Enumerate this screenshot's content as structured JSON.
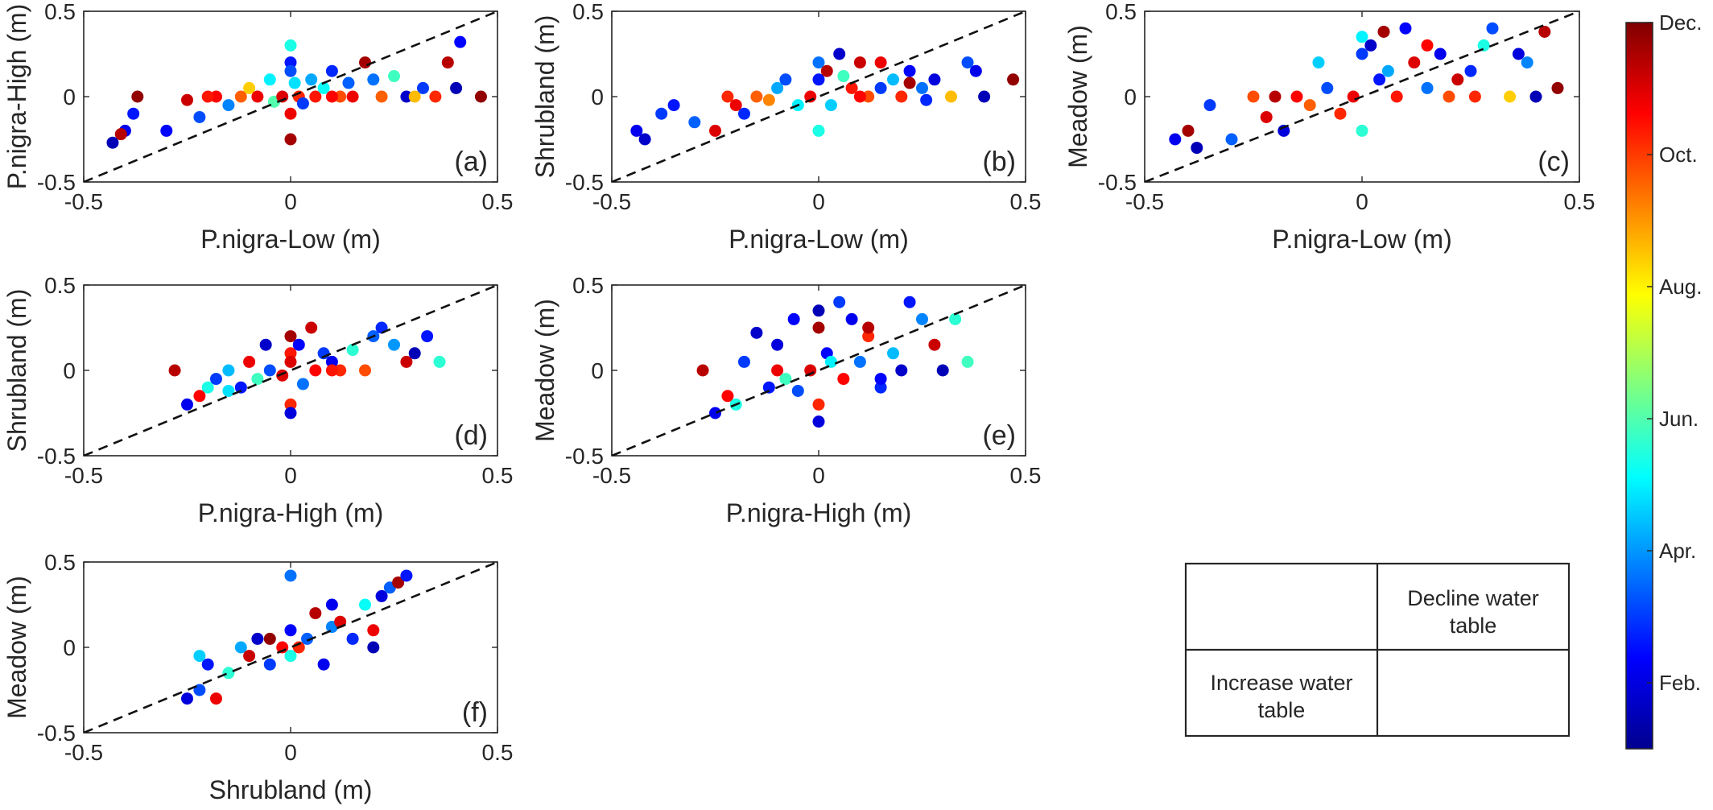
{
  "chart_data": [
    {
      "panel": "(a)",
      "type": "scatter",
      "xlabel": "P.nigra-Low (m)",
      "ylabel": "P.nigra-High (m)",
      "xlim": [
        -0.5,
        0.5
      ],
      "ylim": [
        -0.5,
        0.5
      ],
      "xticks": [
        "-0.5",
        "0",
        "0.5"
      ],
      "yticks": [
        "-0.5",
        "0",
        "0.5"
      ],
      "reference_line": "1:1 dashed",
      "points": [
        [
          -0.43,
          -0.27,
          1.6
        ],
        [
          -0.4,
          -0.2,
          2.2
        ],
        [
          -0.38,
          -0.1,
          2.6
        ],
        [
          -0.41,
          -0.22,
          11.4
        ],
        [
          -0.37,
          0.0,
          11.8
        ],
        [
          -0.3,
          -0.2,
          2.4
        ],
        [
          -0.25,
          -0.02,
          11.2
        ],
        [
          -0.22,
          -0.12,
          3.2
        ],
        [
          -0.18,
          0.0,
          10.6
        ],
        [
          -0.15,
          -0.05,
          3.8
        ],
        [
          -0.12,
          0.0,
          9.6
        ],
        [
          -0.1,
          0.05,
          8.4
        ],
        [
          -0.08,
          0.0,
          10.8
        ],
        [
          -0.05,
          0.1,
          5.0
        ],
        [
          -0.04,
          -0.03,
          6.0
        ],
        [
          -0.02,
          0.0,
          11.0
        ],
        [
          0.0,
          0.3,
          5.4
        ],
        [
          0.0,
          0.2,
          2.6
        ],
        [
          0.0,
          0.15,
          3.2
        ],
        [
          0.0,
          -0.1,
          10.8
        ],
        [
          0.0,
          -0.25,
          11.6
        ],
        [
          0.01,
          0.08,
          4.8
        ],
        [
          0.02,
          0.0,
          10.2
        ],
        [
          0.03,
          -0.04,
          3.0
        ],
        [
          0.05,
          0.1,
          4.2
        ],
        [
          0.06,
          0.0,
          10.4
        ],
        [
          0.08,
          0.05,
          5.2
        ],
        [
          0.1,
          0.15,
          2.8
        ],
        [
          0.12,
          0.0,
          9.8
        ],
        [
          0.14,
          0.08,
          3.4
        ],
        [
          0.15,
          0.0,
          10.8
        ],
        [
          0.18,
          0.2,
          11.6
        ],
        [
          0.2,
          0.1,
          3.6
        ],
        [
          0.22,
          0.0,
          9.6
        ],
        [
          0.25,
          0.12,
          5.8
        ],
        [
          0.28,
          0.0,
          1.8
        ],
        [
          0.32,
          0.05,
          3.0
        ],
        [
          0.35,
          0.0,
          10.2
        ],
        [
          0.38,
          0.2,
          11.4
        ],
        [
          0.4,
          0.05,
          1.6
        ],
        [
          0.41,
          0.32,
          2.4
        ],
        [
          0.46,
          0.0,
          11.8
        ],
        [
          0.3,
          0.0,
          8.6
        ],
        [
          0.1,
          0.0,
          10.6
        ],
        [
          -0.2,
          0.0,
          10.4
        ]
      ]
    },
    {
      "panel": "(b)",
      "type": "scatter",
      "xlabel": "P.nigra-Low (m)",
      "ylabel": "Shrubland (m)",
      "xlim": [
        -0.5,
        0.5
      ],
      "ylim": [
        -0.5,
        0.5
      ],
      "xticks": [
        "-0.5",
        "0",
        "0.5"
      ],
      "yticks": [
        "-0.5",
        "0",
        "0.5"
      ],
      "reference_line": "1:1 dashed",
      "points": [
        [
          -0.44,
          -0.2,
          2.2
        ],
        [
          -0.42,
          -0.25,
          1.8
        ],
        [
          -0.38,
          -0.1,
          3.0
        ],
        [
          -0.35,
          -0.05,
          2.6
        ],
        [
          -0.3,
          -0.15,
          3.4
        ],
        [
          -0.25,
          -0.2,
          11.0
        ],
        [
          -0.22,
          0.0,
          10.2
        ],
        [
          -0.2,
          -0.05,
          10.8
        ],
        [
          -0.18,
          -0.1,
          2.8
        ],
        [
          -0.15,
          0.0,
          9.6
        ],
        [
          -0.1,
          0.05,
          4.2
        ],
        [
          -0.08,
          0.1,
          3.2
        ],
        [
          -0.05,
          -0.05,
          5.0
        ],
        [
          -0.02,
          0.0,
          10.8
        ],
        [
          0.0,
          0.2,
          3.6
        ],
        [
          0.0,
          -0.2,
          5.4
        ],
        [
          0.0,
          0.1,
          2.6
        ],
        [
          0.02,
          0.15,
          11.4
        ],
        [
          0.03,
          -0.05,
          4.6
        ],
        [
          0.05,
          0.25,
          1.8
        ],
        [
          0.08,
          0.05,
          10.4
        ],
        [
          0.1,
          0.2,
          11.2
        ],
        [
          0.12,
          0.0,
          9.8
        ],
        [
          0.15,
          0.05,
          3.0
        ],
        [
          0.18,
          0.1,
          4.4
        ],
        [
          0.2,
          0.0,
          10.2
        ],
        [
          0.22,
          0.15,
          2.4
        ],
        [
          0.25,
          0.05,
          3.6
        ],
        [
          0.28,
          0.1,
          2.0
        ],
        [
          0.32,
          0.0,
          8.6
        ],
        [
          0.36,
          0.2,
          3.2
        ],
        [
          0.38,
          0.15,
          2.2
        ],
        [
          0.4,
          0.0,
          1.6
        ],
        [
          0.47,
          0.1,
          11.8
        ],
        [
          0.1,
          0.0,
          10.6
        ],
        [
          -0.12,
          -0.02,
          9.2
        ],
        [
          0.06,
          0.12,
          5.8
        ],
        [
          0.15,
          0.2,
          10.8
        ],
        [
          0.26,
          -0.02,
          2.8
        ],
        [
          0.22,
          0.08,
          11.6
        ]
      ]
    },
    {
      "panel": "(c)",
      "type": "scatter",
      "xlabel": "P.nigra-Low (m)",
      "ylabel": "Meadow (m)",
      "xlim": [
        -0.5,
        0.5
      ],
      "ylim": [
        -0.5,
        0.5
      ],
      "xticks": [
        "-0.5",
        "0",
        "0.5"
      ],
      "yticks": [
        "-0.5",
        "0",
        "0.5"
      ],
      "reference_line": "1:1 dashed",
      "points": [
        [
          -0.43,
          -0.25,
          2.2
        ],
        [
          -0.4,
          -0.2,
          11.6
        ],
        [
          -0.38,
          -0.3,
          1.6
        ],
        [
          -0.35,
          -0.05,
          3.0
        ],
        [
          -0.3,
          -0.25,
          3.4
        ],
        [
          -0.25,
          0.0,
          9.8
        ],
        [
          -0.22,
          -0.12,
          11.0
        ],
        [
          -0.18,
          -0.2,
          2.0
        ],
        [
          -0.15,
          0.0,
          10.6
        ],
        [
          -0.1,
          0.2,
          4.6
        ],
        [
          -0.08,
          0.05,
          3.2
        ],
        [
          -0.05,
          -0.1,
          10.2
        ],
        [
          -0.02,
          0.0,
          10.8
        ],
        [
          0.0,
          0.35,
          5.0
        ],
        [
          0.0,
          0.25,
          3.0
        ],
        [
          0.0,
          -0.2,
          5.6
        ],
        [
          0.02,
          0.3,
          1.8
        ],
        [
          0.04,
          0.1,
          2.6
        ],
        [
          0.05,
          0.38,
          11.6
        ],
        [
          0.08,
          0.0,
          10.4
        ],
        [
          0.1,
          0.4,
          2.4
        ],
        [
          0.12,
          0.2,
          11.0
        ],
        [
          0.15,
          0.05,
          3.6
        ],
        [
          0.18,
          0.25,
          2.2
        ],
        [
          0.2,
          0.0,
          9.8
        ],
        [
          0.22,
          0.1,
          11.2
        ],
        [
          0.25,
          0.15,
          2.8
        ],
        [
          0.28,
          0.3,
          5.4
        ],
        [
          0.3,
          0.4,
          3.2
        ],
        [
          0.34,
          0.0,
          8.4
        ],
        [
          0.36,
          0.25,
          2.0
        ],
        [
          0.38,
          0.2,
          3.8
        ],
        [
          0.4,
          0.0,
          1.6
        ],
        [
          0.45,
          0.05,
          11.8
        ],
        [
          0.42,
          0.38,
          11.4
        ],
        [
          -0.12,
          -0.05,
          9.6
        ],
        [
          0.06,
          0.15,
          4.2
        ],
        [
          0.15,
          0.3,
          10.6
        ],
        [
          0.26,
          0.0,
          10.2
        ],
        [
          -0.2,
          0.0,
          11.4
        ]
      ]
    },
    {
      "panel": "(d)",
      "type": "scatter",
      "xlabel": "P.nigra-High (m)",
      "ylabel": "Shrubland (m)",
      "xlim": [
        -0.5,
        0.5
      ],
      "ylim": [
        -0.5,
        0.5
      ],
      "xticks": [
        "-0.5",
        "0",
        "0.5"
      ],
      "yticks": [
        "-0.5",
        "0",
        "0.5"
      ],
      "reference_line": "1:1 dashed",
      "points": [
        [
          -0.28,
          0.0,
          11.4
        ],
        [
          -0.25,
          -0.2,
          2.2
        ],
        [
          -0.22,
          -0.15,
          10.6
        ],
        [
          -0.2,
          -0.1,
          5.4
        ],
        [
          -0.18,
          -0.05,
          3.0
        ],
        [
          -0.15,
          0.0,
          4.4
        ],
        [
          -0.12,
          -0.1,
          2.6
        ],
        [
          -0.1,
          0.05,
          10.8
        ],
        [
          -0.08,
          -0.05,
          5.8
        ],
        [
          -0.06,
          0.15,
          1.8
        ],
        [
          -0.05,
          0.0,
          3.2
        ],
        [
          -0.02,
          -0.03,
          11.0
        ],
        [
          0.0,
          0.2,
          11.6
        ],
        [
          0.0,
          0.1,
          10.4
        ],
        [
          0.0,
          -0.2,
          10.2
        ],
        [
          0.0,
          -0.25,
          2.0
        ],
        [
          0.0,
          0.05,
          11.0
        ],
        [
          0.02,
          0.15,
          2.4
        ],
        [
          0.03,
          -0.08,
          3.6
        ],
        [
          0.05,
          0.25,
          11.2
        ],
        [
          0.06,
          0.0,
          10.6
        ],
        [
          0.08,
          0.1,
          3.0
        ],
        [
          0.1,
          0.05,
          2.2
        ],
        [
          0.12,
          0.0,
          10.2
        ],
        [
          0.15,
          0.12,
          5.6
        ],
        [
          0.18,
          0.0,
          9.8
        ],
        [
          0.2,
          0.2,
          3.4
        ],
        [
          0.22,
          0.25,
          2.8
        ],
        [
          0.25,
          0.15,
          4.0
        ],
        [
          0.28,
          0.05,
          11.2
        ],
        [
          0.3,
          0.1,
          1.6
        ],
        [
          0.33,
          0.2,
          2.6
        ],
        [
          0.36,
          0.05,
          5.6
        ],
        [
          0.1,
          0.0,
          10.4
        ],
        [
          -0.15,
          -0.12,
          4.8
        ]
      ]
    },
    {
      "panel": "(e)",
      "type": "scatter",
      "xlabel": "P.nigra-High (m)",
      "ylabel": "Meadow (m)",
      "xlim": [
        -0.5,
        0.5
      ],
      "ylim": [
        -0.5,
        0.5
      ],
      "xticks": [
        "-0.5",
        "0",
        "0.5"
      ],
      "yticks": [
        "-0.5",
        "0",
        "0.5"
      ],
      "reference_line": "1:1 dashed",
      "points": [
        [
          -0.28,
          0.0,
          11.4
        ],
        [
          -0.25,
          -0.25,
          2.2
        ],
        [
          -0.22,
          -0.15,
          10.6
        ],
        [
          -0.2,
          -0.2,
          5.4
        ],
        [
          -0.18,
          0.05,
          3.0
        ],
        [
          -0.15,
          0.22,
          1.8
        ],
        [
          -0.12,
          -0.1,
          2.6
        ],
        [
          -0.1,
          0.0,
          10.8
        ],
        [
          -0.08,
          -0.05,
          5.8
        ],
        [
          -0.06,
          0.3,
          2.4
        ],
        [
          -0.05,
          -0.12,
          3.2
        ],
        [
          -0.02,
          0.0,
          11.0
        ],
        [
          0.0,
          0.35,
          1.6
        ],
        [
          0.0,
          0.25,
          11.6
        ],
        [
          0.0,
          -0.3,
          2.0
        ],
        [
          0.0,
          -0.2,
          10.2
        ],
        [
          0.02,
          0.1,
          2.4
        ],
        [
          0.03,
          0.05,
          5.0
        ],
        [
          0.05,
          0.4,
          3.0
        ],
        [
          0.06,
          -0.05,
          10.6
        ],
        [
          0.08,
          0.3,
          2.2
        ],
        [
          0.1,
          0.05,
          3.6
        ],
        [
          0.12,
          0.2,
          10.2
        ],
        [
          0.15,
          -0.1,
          2.8
        ],
        [
          0.18,
          0.1,
          4.4
        ],
        [
          0.2,
          0.0,
          1.8
        ],
        [
          0.22,
          0.4,
          2.6
        ],
        [
          0.25,
          0.3,
          3.8
        ],
        [
          0.28,
          0.15,
          11.2
        ],
        [
          0.3,
          0.0,
          1.6
        ],
        [
          0.33,
          0.3,
          5.6
        ],
        [
          0.36,
          0.05,
          5.8
        ],
        [
          0.12,
          0.25,
          11.4
        ],
        [
          -0.1,
          0.15,
          2.0
        ],
        [
          0.15,
          -0.05,
          2.4
        ]
      ]
    },
    {
      "panel": "(f)",
      "type": "scatter",
      "xlabel": "Shrubland (m)",
      "ylabel": "Meadow (m)",
      "xlim": [
        -0.5,
        0.5
      ],
      "ylim": [
        -0.5,
        0.5
      ],
      "xticks": [
        "-0.5",
        "0",
        "0.5"
      ],
      "yticks": [
        "-0.5",
        "0",
        "0.5"
      ],
      "reference_line": "1:1 dashed",
      "points": [
        [
          -0.25,
          -0.3,
          2.0
        ],
        [
          -0.22,
          -0.25,
          3.2
        ],
        [
          -0.2,
          -0.1,
          2.6
        ],
        [
          -0.18,
          -0.3,
          10.8
        ],
        [
          -0.15,
          -0.15,
          5.6
        ],
        [
          -0.12,
          0.0,
          4.2
        ],
        [
          -0.1,
          -0.05,
          11.2
        ],
        [
          -0.08,
          0.05,
          1.8
        ],
        [
          -0.05,
          -0.1,
          3.0
        ],
        [
          -0.02,
          0.0,
          10.6
        ],
        [
          0.0,
          0.42,
          3.6
        ],
        [
          0.0,
          0.1,
          2.4
        ],
        [
          0.0,
          -0.05,
          5.4
        ],
        [
          0.02,
          0.0,
          10.2
        ],
        [
          0.04,
          0.05,
          3.4
        ],
        [
          0.06,
          0.2,
          11.4
        ],
        [
          0.08,
          -0.1,
          2.2
        ],
        [
          0.1,
          0.12,
          3.8
        ],
        [
          0.12,
          0.15,
          11.0
        ],
        [
          0.15,
          0.05,
          2.8
        ],
        [
          0.18,
          0.25,
          5.2
        ],
        [
          0.2,
          0.1,
          10.8
        ],
        [
          0.22,
          0.3,
          2.0
        ],
        [
          0.24,
          0.35,
          3.4
        ],
        [
          0.26,
          0.38,
          11.6
        ],
        [
          0.28,
          0.42,
          2.6
        ],
        [
          0.2,
          0.0,
          1.6
        ],
        [
          -0.22,
          -0.05,
          4.6
        ],
        [
          0.1,
          0.25,
          2.2
        ],
        [
          -0.05,
          0.05,
          11.8
        ]
      ]
    }
  ],
  "colorbar": {
    "colormap": "jet",
    "range": [
      1,
      12
    ],
    "tick_labels": [
      {
        "label": "Dec.",
        "month": 12
      },
      {
        "label": "Oct.",
        "month": 10
      },
      {
        "label": "Aug.",
        "month": 8
      },
      {
        "label": "Jun.",
        "month": 6
      },
      {
        "label": "Apr.",
        "month": 4
      },
      {
        "label": "Feb.",
        "month": 2
      }
    ]
  },
  "key": {
    "upper_right": "Decline water table",
    "lower_left": "Increase water table",
    "upper_right_lines": [
      "Decline water",
      "table"
    ],
    "lower_left_lines": [
      "Increase water",
      "table"
    ]
  }
}
